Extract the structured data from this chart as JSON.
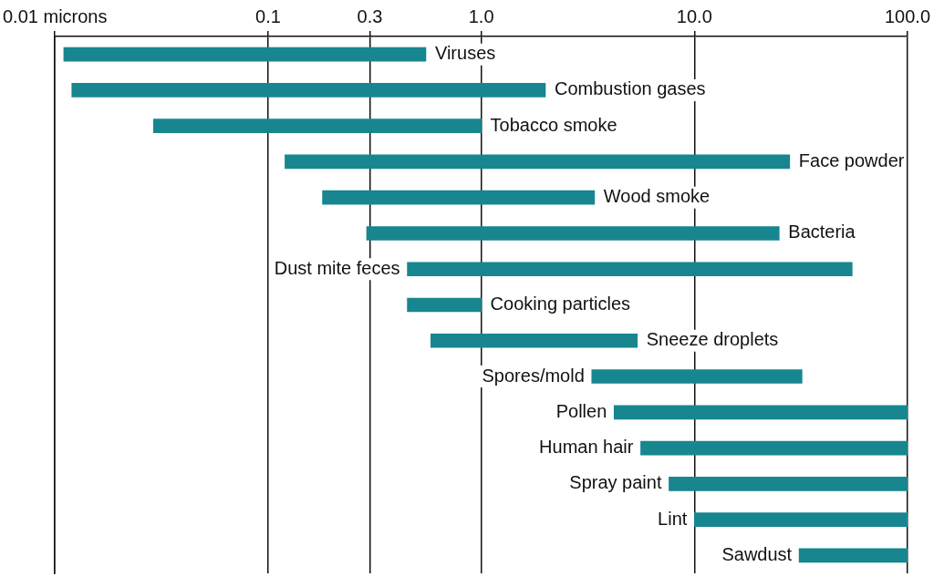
{
  "chart_data": {
    "type": "bar",
    "orientation": "horizontal",
    "categories": [
      "Viruses",
      "Combustion gases",
      "Tobacco smoke",
      "Face powder",
      "Wood smoke",
      "Bacteria",
      "Dust mite feces",
      "Cooking particles",
      "Sneeze droplets",
      "Spores/mold",
      "Pollen",
      "Human hair",
      "Spray paint",
      "Lint",
      "Sawdust"
    ],
    "base": [
      0.011,
      0.012,
      0.029,
      0.12,
      0.18,
      0.29,
      0.45,
      0.45,
      0.58,
      3.3,
      4.2,
      5.6,
      7.6,
      10,
      31
    ],
    "values": [
      0.539,
      1.988,
      0.971,
      27.88,
      3.22,
      24.71,
      54.55,
      0.55,
      4.82,
      28.7,
      95.8,
      94.4,
      92.4,
      90,
      69
    ],
    "color": "#17868f",
    "log": "x",
    "xlim": [
      0.01,
      100
    ],
    "xticks": [
      {
        "value": 0.01,
        "label": "0.01 microns"
      },
      0.1,
      0.3,
      {
        "value": 1,
        "label": "1.0"
      },
      {
        "value": 10,
        "label": "10.0"
      },
      {
        "value": 100,
        "label": "100.0"
      }
    ],
    "grid": "x",
    "legend": false,
    "tick_labels": "x"
  }
}
